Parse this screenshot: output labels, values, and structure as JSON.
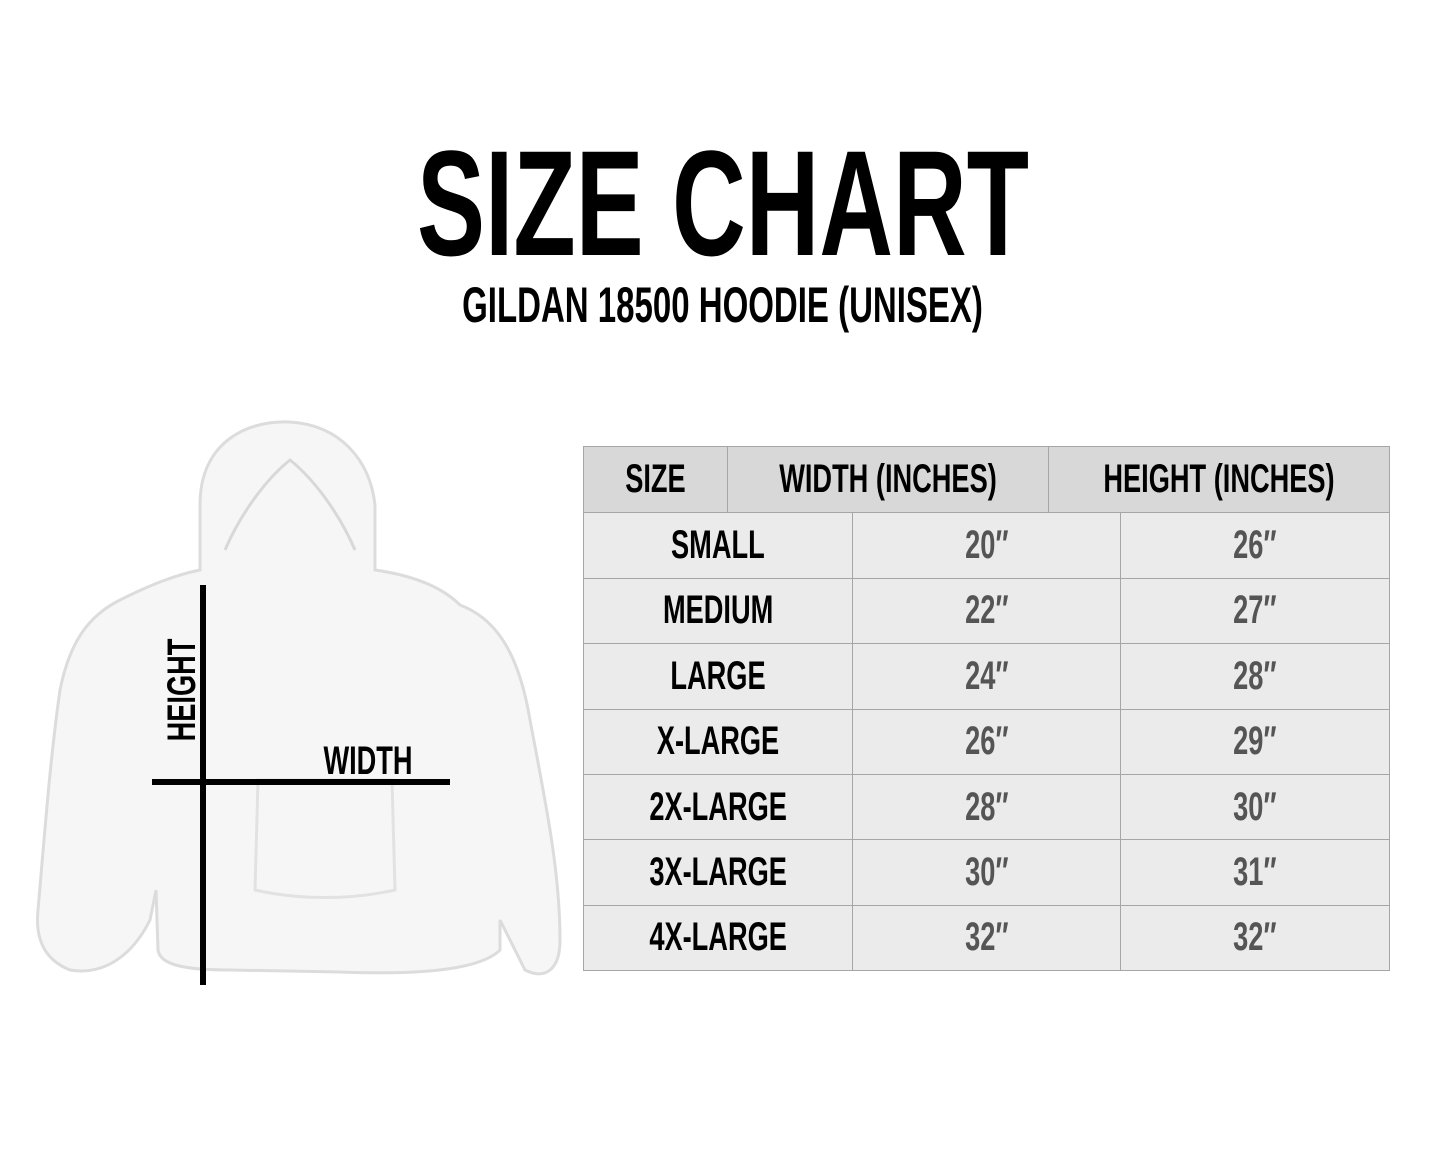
{
  "header": {
    "title": "SIZE CHART",
    "subtitle": "GILDAN 18500 HOODIE (UNISEX)"
  },
  "illustration": {
    "height_label": "HEIGHT",
    "width_label": "WIDTH"
  },
  "table": {
    "columns": [
      "SIZE",
      "WIDTH (INCHES)",
      "HEIGHT (INCHES)"
    ],
    "rows": [
      [
        "SMALL",
        "20″",
        "26″"
      ],
      [
        "MEDIUM",
        "22″",
        "27″"
      ],
      [
        "LARGE",
        "24″",
        "28″"
      ],
      [
        "X-LARGE",
        "26″",
        "29″"
      ],
      [
        "2X-LARGE",
        "28″",
        "30″"
      ],
      [
        "3X-LARGE",
        "30″",
        "31″"
      ],
      [
        "4X-LARGE",
        "32″",
        "32″"
      ]
    ]
  }
}
